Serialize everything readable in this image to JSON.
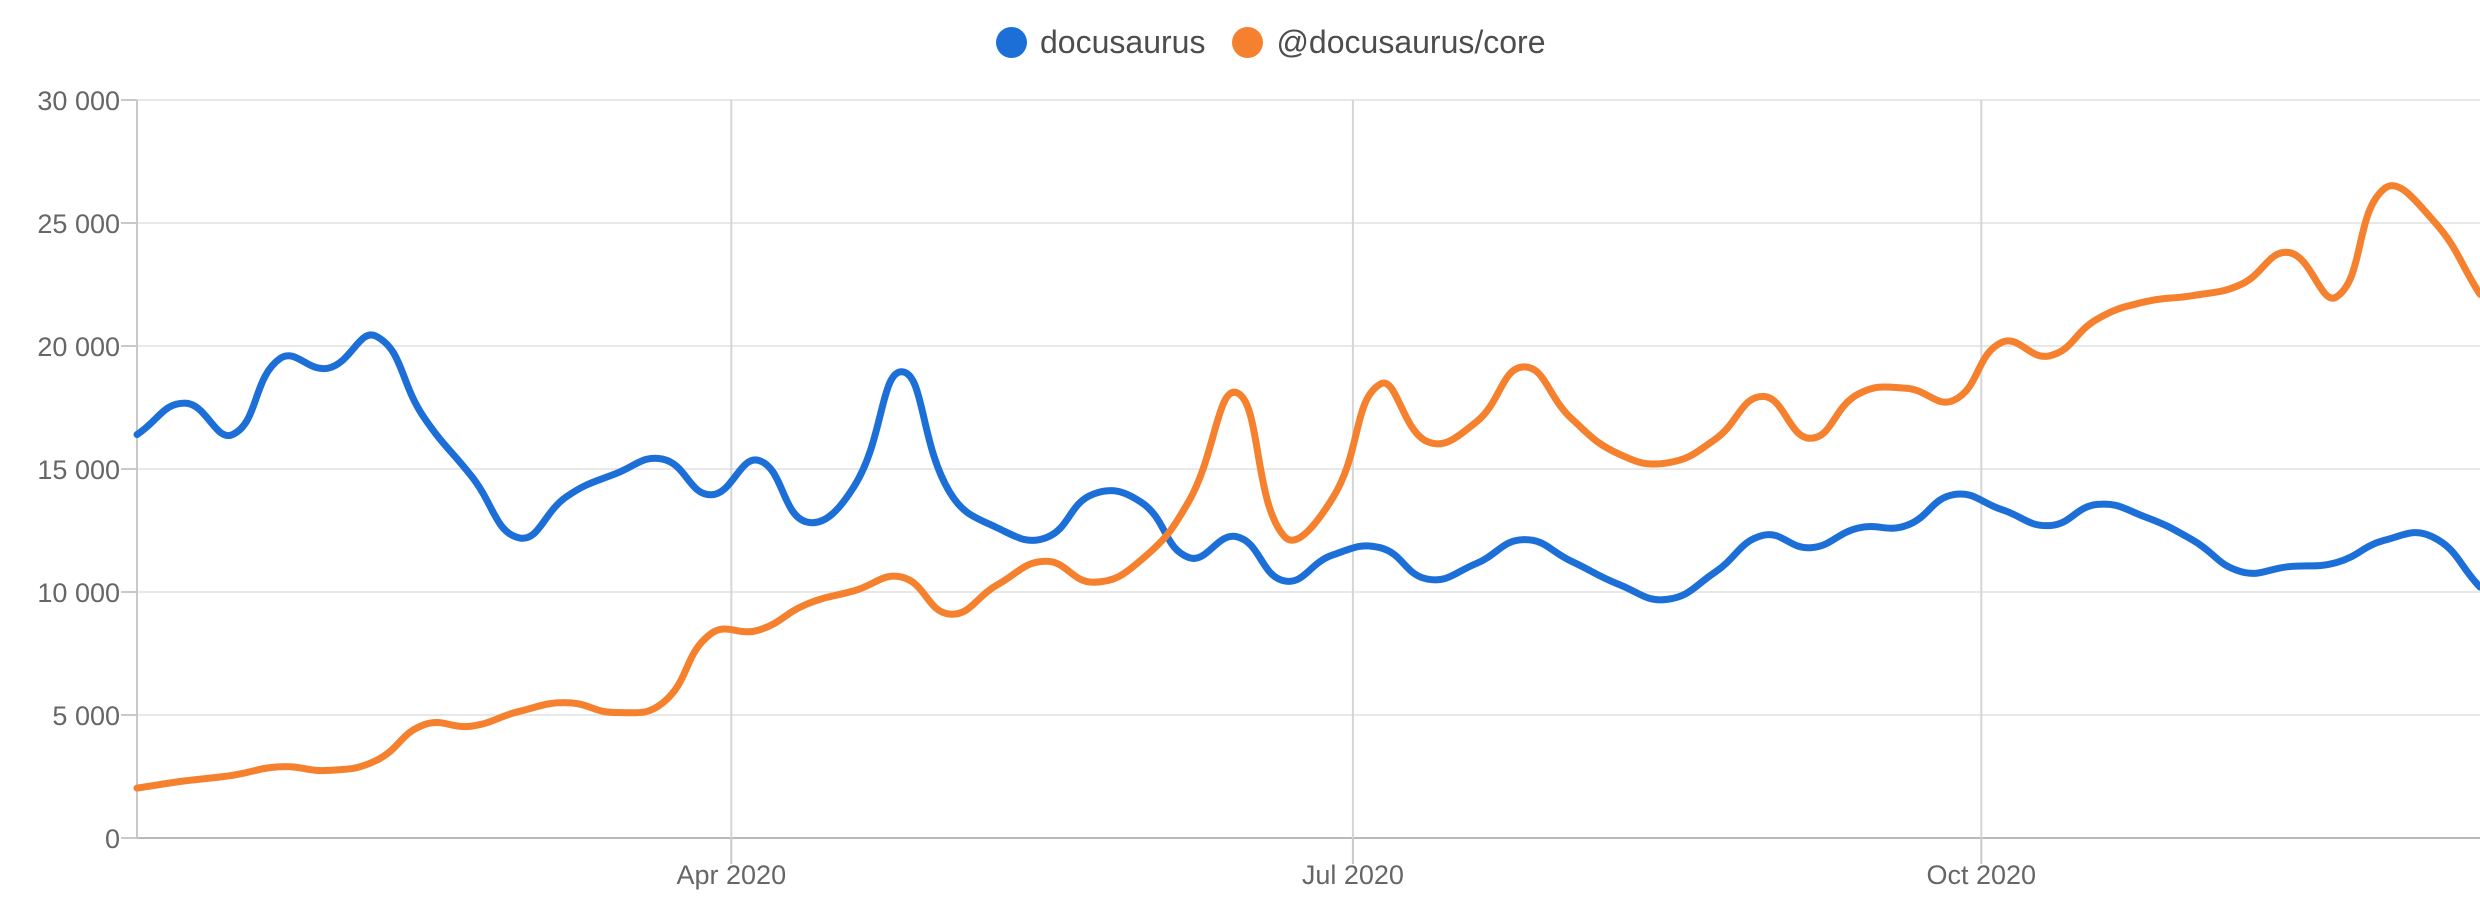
{
  "legend": {
    "items": [
      {
        "label": "docusaurus",
        "color": "#1d6fd8"
      },
      {
        "label": "@docusaurus/core",
        "color": "#f5812e"
      }
    ]
  },
  "chart_data": {
    "type": "line",
    "title": "",
    "xlabel": "",
    "ylabel": "",
    "legend_position": "top",
    "grid": true,
    "smoothing_tension": 0.45,
    "ylim": [
      0,
      30000
    ],
    "y_ticks": [
      {
        "value": 0,
        "label": "0"
      },
      {
        "value": 5000,
        "label": "5 000"
      },
      {
        "value": 10000,
        "label": "10 000"
      },
      {
        "value": 15000,
        "label": "15 000"
      },
      {
        "value": 20000,
        "label": "20 000"
      },
      {
        "value": 25000,
        "label": "25 000"
      },
      {
        "value": 30000,
        "label": "30 000"
      }
    ],
    "x_ticks": [
      {
        "date": "2020-04-01",
        "label": "Apr 2020"
      },
      {
        "date": "2020-07-01",
        "label": "Jul 2020"
      },
      {
        "date": "2020-10-01",
        "label": "Oct 2020"
      }
    ],
    "colors": {
      "h_grid": "#e8e8e8",
      "v_grid": "#d5d5d5",
      "axis_line": "#b9b9b9",
      "y_axis_line": "#c9c9c9",
      "tick": "#c9c9c9",
      "tick_text": "#666666",
      "legend_text": "#4d4d4d"
    },
    "x": [
      "2020-01-05",
      "2020-01-12",
      "2020-01-19",
      "2020-01-26",
      "2020-02-02",
      "2020-02-09",
      "2020-02-16",
      "2020-02-23",
      "2020-03-01",
      "2020-03-08",
      "2020-03-15",
      "2020-03-22",
      "2020-03-29",
      "2020-04-05",
      "2020-04-12",
      "2020-04-19",
      "2020-04-26",
      "2020-05-03",
      "2020-05-10",
      "2020-05-17",
      "2020-05-24",
      "2020-05-31",
      "2020-06-07",
      "2020-06-14",
      "2020-06-21",
      "2020-06-28",
      "2020-07-05",
      "2020-07-12",
      "2020-07-19",
      "2020-07-26",
      "2020-08-02",
      "2020-08-09",
      "2020-08-16",
      "2020-08-23",
      "2020-08-30",
      "2020-09-06",
      "2020-09-13",
      "2020-09-20",
      "2020-09-27",
      "2020-10-04",
      "2020-10-11",
      "2020-10-18",
      "2020-10-25",
      "2020-11-01",
      "2020-11-08",
      "2020-11-15",
      "2020-11-22",
      "2020-11-29",
      "2020-12-06",
      "2020-12-13"
    ],
    "series": [
      {
        "name": "docusaurus",
        "color": "#1d6fd8",
        "values": [
          16400,
          17680,
          16400,
          19500,
          19100,
          20400,
          17100,
          14700,
          12200,
          13900,
          14800,
          15400,
          13950,
          15350,
          12850,
          14300,
          18950,
          14050,
          12600,
          12200,
          13980,
          13650,
          11400,
          12250,
          10450,
          11500,
          11800,
          10520,
          11150,
          12130,
          11250,
          10300,
          9700,
          10800,
          12300,
          11800,
          12600,
          12700,
          13960,
          13350,
          12700,
          13560,
          13050,
          12100,
          10830,
          11030,
          11200,
          12100,
          12250,
          10200
        ]
      },
      {
        "name": "@docusaurus/core",
        "color": "#f5812e",
        "values": [
          2030,
          2320,
          2550,
          2900,
          2750,
          3150,
          4600,
          4550,
          5150,
          5500,
          5100,
          5500,
          8300,
          8450,
          9500,
          10050,
          10600,
          9100,
          10300,
          11250,
          10400,
          11300,
          13700,
          18100,
          12250,
          13800,
          18450,
          16100,
          16900,
          19150,
          17050,
          15600,
          15250,
          16200,
          17950,
          16250,
          18050,
          18280,
          17800,
          20150,
          19600,
          21100,
          21800,
          22050,
          22500,
          23800,
          22000,
          26400,
          25150,
          22100
        ]
      }
    ]
  }
}
